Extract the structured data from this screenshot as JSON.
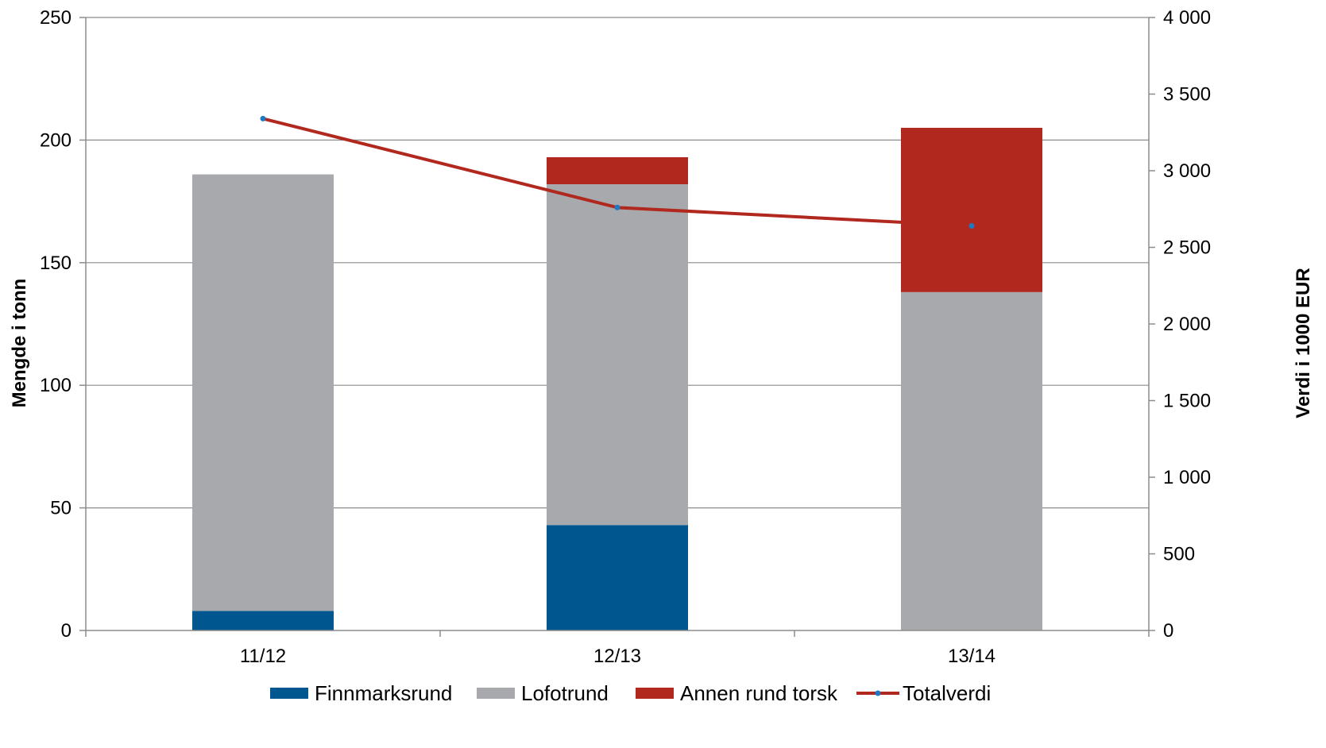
{
  "chart_data": {
    "type": "bar",
    "stacked": true,
    "categories": [
      "11/12",
      "12/13",
      "13/14"
    ],
    "series": [
      {
        "name": "Finnmarksrund",
        "type": "bar",
        "axis": "left",
        "color": "#00568f",
        "values": [
          8,
          43,
          0
        ]
      },
      {
        "name": "Lofotrund",
        "type": "bar",
        "axis": "left",
        "color": "#a7a9ac",
        "values": [
          178,
          139,
          138
        ]
      },
      {
        "name": "Annen rund torsk",
        "type": "bar",
        "axis": "left",
        "color": "#b0281e",
        "values": [
          0,
          11,
          67
        ]
      },
      {
        "name": "Totalverdi",
        "type": "line",
        "axis": "right",
        "color": "#b0281e",
        "marker_color": "#1f78c1",
        "values": [
          3340,
          2760,
          2640
        ]
      }
    ],
    "ylabel": "Mengde i tonn",
    "y2label": "Verdi i 1000 EUR",
    "ylim": [
      0,
      250
    ],
    "y2lim": [
      0,
      4000
    ],
    "yticks": [
      0,
      50,
      100,
      150,
      200,
      250
    ],
    "y2ticks": [
      "0",
      "500",
      "1 000",
      "1 500",
      "2 000",
      "2 500",
      "3 000",
      "3 500",
      "4 000"
    ],
    "grid": true,
    "legend": "bottom"
  }
}
